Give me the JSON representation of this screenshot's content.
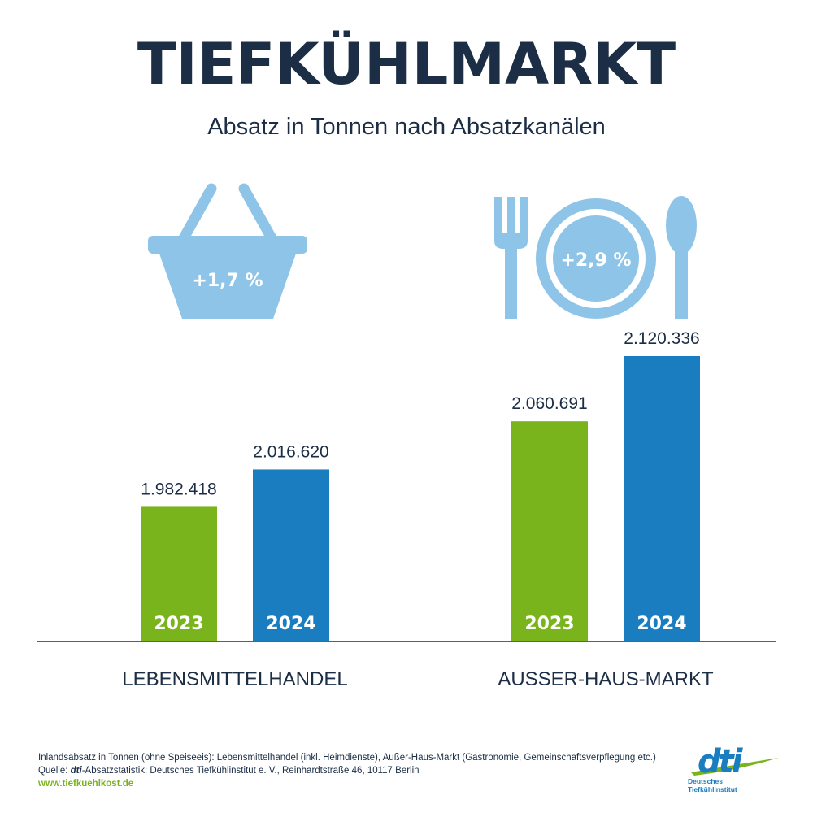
{
  "title": "TIEFKÜHLMARKT",
  "subtitle": "Absatz in Tonnen nach Absatzkanälen",
  "colors": {
    "2023": "#7ab41d",
    "2024": "#1a7dc0",
    "icon": "#8dc4e8",
    "text": "#1c2e45",
    "axis": "#1c2e45"
  },
  "chart_data": {
    "type": "bar",
    "categories": [
      "LEBENSMITTELHANDEL",
      "AUSSER-HAUS-MARKT"
    ],
    "series": [
      {
        "name": "2023",
        "values": [
          1982418,
          2060691
        ],
        "labels": [
          "1.982.418",
          "2.060.691"
        ]
      },
      {
        "name": "2024",
        "values": [
          2016620,
          2120336
        ],
        "labels": [
          "2.016.620",
          "2.120.336"
        ]
      }
    ],
    "growth": [
      "+1,7 %",
      "+2,9 %"
    ],
    "icons": [
      "shopping-basket-icon",
      "plate-cutlery-icon"
    ]
  },
  "footer": {
    "line1": "Inlandsabsatz in Tonnen (ohne Speiseeis): Lebensmittelhandel (inkl. Heimdienste), Außer-Haus-Markt (Gastronomie, Gemeinschaftsverpflegung etc.)",
    "line2_prefix": "Quelle: ",
    "line2_brand": "dti",
    "line2_rest": "-Absatzstatistik; Deutsches Tiefkühlinstitut e. V., Reinhardtstraße 46, 10117 Berlin",
    "url": "www.tiefkuehlkost.de"
  },
  "logo": {
    "word": "dti",
    "line1": "Deutsches",
    "line2": "Tiefkühlinstitut"
  }
}
